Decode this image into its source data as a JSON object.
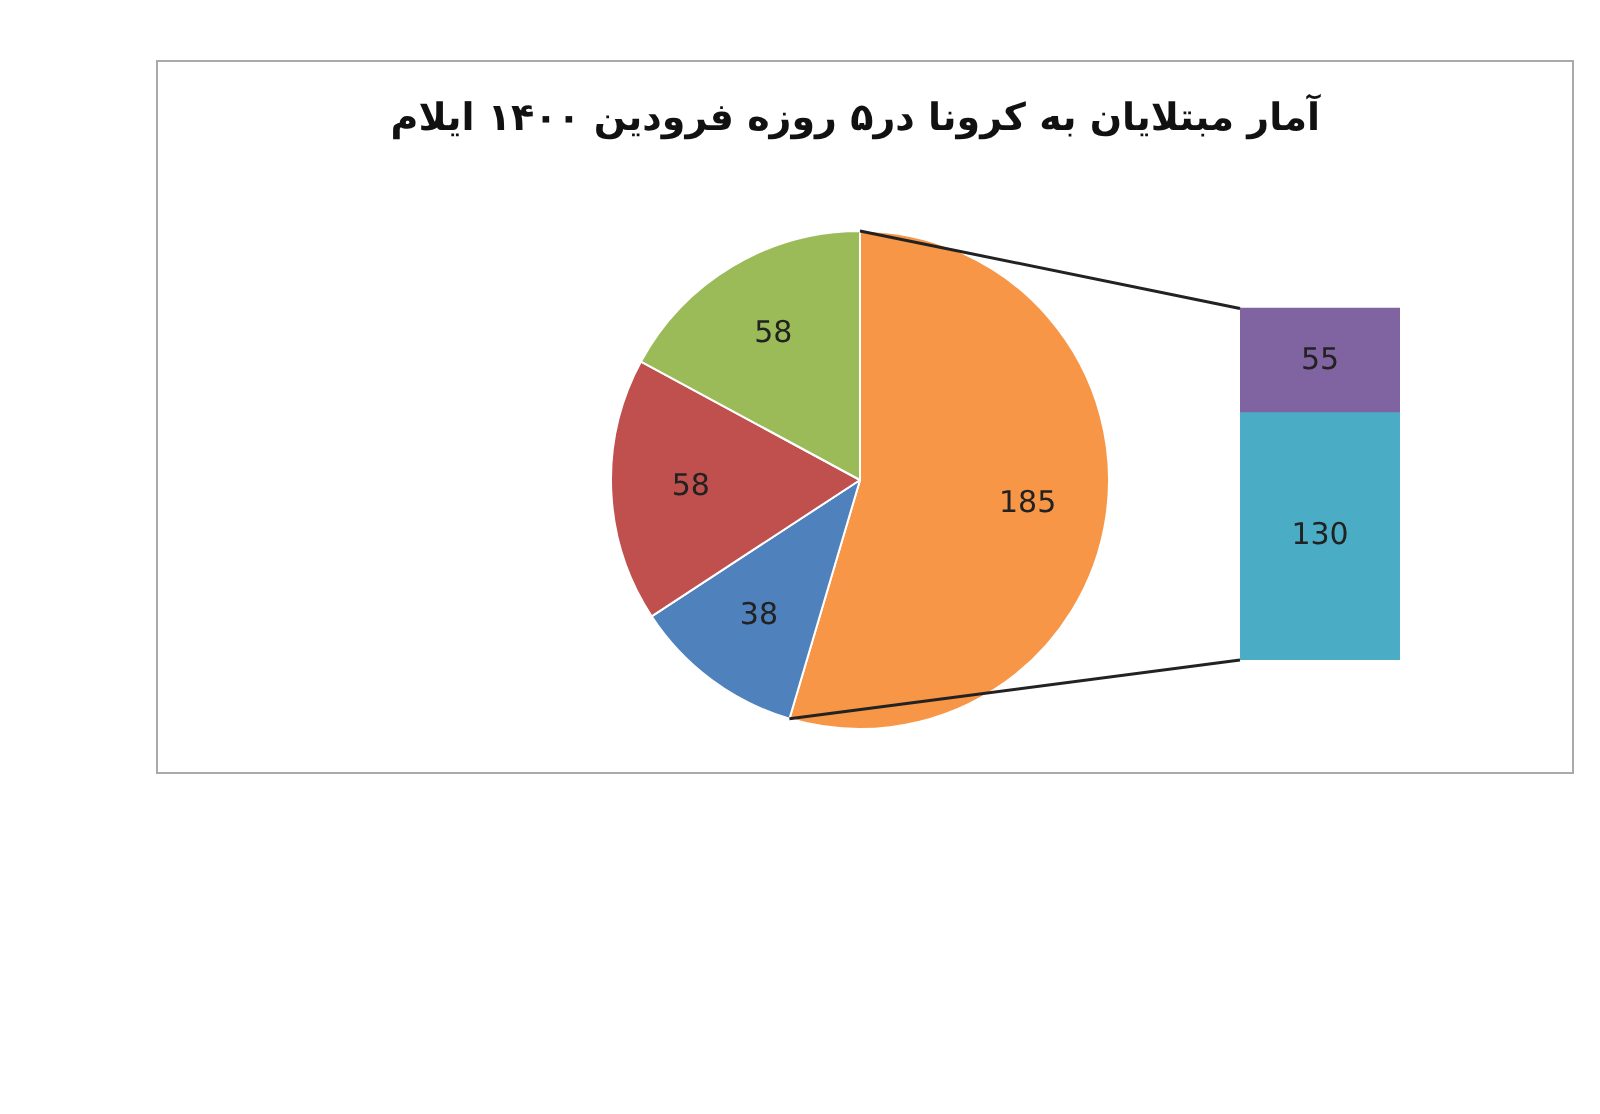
{
  "chart_data": [
    {
      "type": "pie",
      "title": "آمار مبتلایان به کرونا در۵ روزه فرودین ۱۴۰۰ ایلام",
      "categories": [
        null,
        null,
        null,
        null
      ],
      "values": [
        185,
        38,
        58,
        58
      ],
      "colors": [
        "#f79646",
        "#4f81bd",
        "#c0504d",
        "#9bbb59"
      ],
      "data_labels": true
    },
    {
      "type": "bar",
      "stacked": true,
      "categories": [
        null
      ],
      "series": [
        {
          "color": "#4bacc6",
          "values": [
            130
          ]
        },
        {
          "color": "#8064a2",
          "values": [
            55
          ]
        }
      ],
      "data_labels": true,
      "tick_labels": false
    }
  ]
}
